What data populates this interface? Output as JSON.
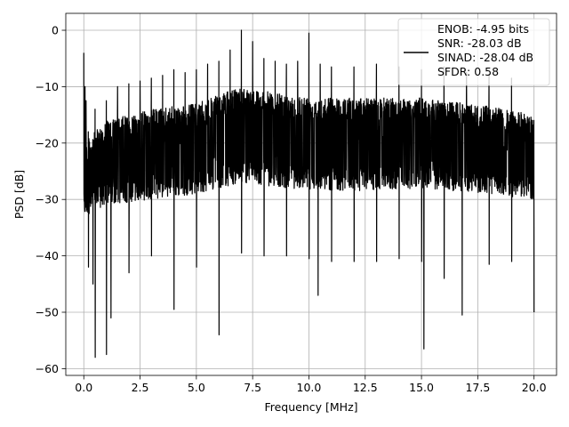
{
  "chart_data": {
    "type": "line",
    "title": "",
    "xlabel": "Frequency [MHz]",
    "ylabel": "PSD [dB]",
    "xlim": [
      -0.8,
      21.0
    ],
    "ylim": [
      -61.2,
      3.0
    ],
    "xticks": [
      0.0,
      2.5,
      5.0,
      7.5,
      10.0,
      12.5,
      15.0,
      17.5,
      20.0
    ],
    "xtick_labels": [
      "0.0",
      "2.5",
      "5.0",
      "7.5",
      "10.0",
      "12.5",
      "15.0",
      "17.5",
      "20.0"
    ],
    "yticks": [
      0,
      -10,
      -20,
      -30,
      -40,
      -50,
      -60
    ],
    "ytick_labels": [
      "0",
      "−10",
      "−20",
      "−30",
      "−40",
      "−50",
      "−60"
    ],
    "grid": true,
    "legend_position": "top-right",
    "legend": [
      "ENOB: -4.95 bits",
      "SNR: -28.03 dB",
      "SINAD: -28.04 dB",
      "SFDR: 0.58"
    ],
    "series": [
      {
        "color": "#000000",
        "peaks": [
          [
            0.0,
            -4.0
          ],
          [
            0.05,
            -10.0
          ],
          [
            0.1,
            -12.5
          ],
          [
            0.2,
            -18.0
          ],
          [
            0.5,
            -14.0
          ],
          [
            1.0,
            -12.5
          ],
          [
            1.5,
            -10.0
          ],
          [
            2.0,
            -9.5
          ],
          [
            2.5,
            -9.0
          ],
          [
            3.0,
            -8.5
          ],
          [
            3.5,
            -8.0
          ],
          [
            4.0,
            -7.0
          ],
          [
            4.5,
            -7.5
          ],
          [
            5.0,
            -7.0
          ],
          [
            5.5,
            -6.0
          ],
          [
            6.0,
            -5.5
          ],
          [
            6.5,
            -3.5
          ],
          [
            7.0,
            0.0
          ],
          [
            7.5,
            -2.0
          ],
          [
            8.0,
            -5.0
          ],
          [
            8.5,
            -5.5
          ],
          [
            9.0,
            -6.0
          ],
          [
            9.5,
            -5.5
          ],
          [
            10.0,
            -0.5
          ],
          [
            10.5,
            -6.0
          ],
          [
            11.0,
            -6.5
          ],
          [
            12.0,
            -6.5
          ],
          [
            13.0,
            -6.0
          ],
          [
            14.0,
            -6.5
          ],
          [
            15.0,
            -7.0
          ],
          [
            16.0,
            -6.5
          ],
          [
            17.0,
            -7.5
          ],
          [
            18.0,
            -8.0
          ],
          [
            19.0,
            -8.5
          ],
          [
            20.0,
            -9.0
          ]
        ],
        "troughs": [
          [
            0.2,
            -42.0
          ],
          [
            0.4,
            -45.0
          ],
          [
            0.5,
            -58.0
          ],
          [
            1.0,
            -57.5
          ],
          [
            1.2,
            -51.0
          ],
          [
            2.0,
            -43.0
          ],
          [
            3.0,
            -40.0
          ],
          [
            4.0,
            -49.5
          ],
          [
            5.0,
            -42.0
          ],
          [
            6.0,
            -54.0
          ],
          [
            7.0,
            -39.5
          ],
          [
            8.0,
            -40.0
          ],
          [
            9.0,
            -40.0
          ],
          [
            10.0,
            -40.5
          ],
          [
            10.4,
            -47.0
          ],
          [
            11.0,
            -41.0
          ],
          [
            12.0,
            -41.0
          ],
          [
            13.0,
            -41.0
          ],
          [
            14.0,
            -40.5
          ],
          [
            15.0,
            -41.0
          ],
          [
            15.1,
            -56.5
          ],
          [
            16.0,
            -44.0
          ],
          [
            16.8,
            -50.5
          ],
          [
            18.0,
            -41.5
          ],
          [
            19.0,
            -41.0
          ],
          [
            20.0,
            -50.0
          ]
        ],
        "band_upper": [
          [
            0.0,
            -20.0
          ],
          [
            1.0,
            -16.0
          ],
          [
            3.0,
            -14.0
          ],
          [
            5.0,
            -13.0
          ],
          [
            7.0,
            -10.0
          ],
          [
            9.0,
            -11.5
          ],
          [
            12.0,
            -12.0
          ],
          [
            15.0,
            -12.0
          ],
          [
            18.0,
            -13.5
          ],
          [
            20.0,
            -15.0
          ]
        ],
        "band_lower": [
          [
            0.0,
            -33.0
          ],
          [
            1.0,
            -31.0
          ],
          [
            3.0,
            -30.0
          ],
          [
            5.0,
            -29.0
          ],
          [
            7.0,
            -27.0
          ],
          [
            9.0,
            -28.0
          ],
          [
            12.0,
            -28.5
          ],
          [
            15.0,
            -28.0
          ],
          [
            18.0,
            -29.0
          ],
          [
            20.0,
            -30.0
          ]
        ]
      }
    ]
  }
}
